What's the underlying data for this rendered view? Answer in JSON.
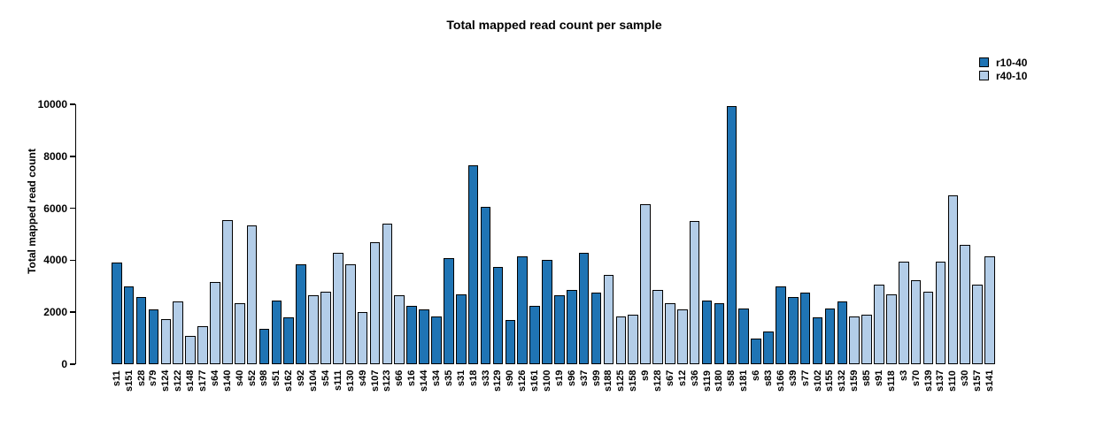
{
  "chart_data": {
    "type": "bar",
    "title": "Total mapped read count per sample",
    "xlabel": "",
    "ylabel": "Total mapped read count",
    "ylim": [
      0,
      10000
    ],
    "yticks": [
      0,
      2000,
      4000,
      6000,
      8000,
      10000
    ],
    "grid": false,
    "legend_position": "top-right",
    "bar_border_color": "#000000",
    "legend": [
      {
        "name": "r10-40",
        "color": "#1F74B4"
      },
      {
        "name": "r40-10",
        "color": "#B3CDE8"
      }
    ],
    "bars": [
      {
        "sample": "s11",
        "value": 3900,
        "group": "r10-40"
      },
      {
        "sample": "s151",
        "value": 3000,
        "group": "r10-40"
      },
      {
        "sample": "s28",
        "value": 2600,
        "group": "r10-40"
      },
      {
        "sample": "s79",
        "value": 2100,
        "group": "r10-40"
      },
      {
        "sample": "s124",
        "value": 1750,
        "group": "r40-10"
      },
      {
        "sample": "s122",
        "value": 2400,
        "group": "r40-10"
      },
      {
        "sample": "s148",
        "value": 1100,
        "group": "r40-10"
      },
      {
        "sample": "s177",
        "value": 1450,
        "group": "r40-10"
      },
      {
        "sample": "s64",
        "value": 3150,
        "group": "r40-10"
      },
      {
        "sample": "s140",
        "value": 5550,
        "group": "r40-10"
      },
      {
        "sample": "s40",
        "value": 2350,
        "group": "r40-10"
      },
      {
        "sample": "s52",
        "value": 5350,
        "group": "r40-10"
      },
      {
        "sample": "s98",
        "value": 1350,
        "group": "r10-40"
      },
      {
        "sample": "s51",
        "value": 2450,
        "group": "r10-40"
      },
      {
        "sample": "s162",
        "value": 1800,
        "group": "r10-40"
      },
      {
        "sample": "s92",
        "value": 3850,
        "group": "r10-40"
      },
      {
        "sample": "s104",
        "value": 2650,
        "group": "r40-10"
      },
      {
        "sample": "s54",
        "value": 2800,
        "group": "r40-10"
      },
      {
        "sample": "s111",
        "value": 4300,
        "group": "r40-10"
      },
      {
        "sample": "s130",
        "value": 3850,
        "group": "r40-10"
      },
      {
        "sample": "s49",
        "value": 2000,
        "group": "r40-10"
      },
      {
        "sample": "s107",
        "value": 4700,
        "group": "r40-10"
      },
      {
        "sample": "s123",
        "value": 5400,
        "group": "r40-10"
      },
      {
        "sample": "s66",
        "value": 2650,
        "group": "r40-10"
      },
      {
        "sample": "s16",
        "value": 2250,
        "group": "r10-40"
      },
      {
        "sample": "s144",
        "value": 2100,
        "group": "r10-40"
      },
      {
        "sample": "s34",
        "value": 1850,
        "group": "r10-40"
      },
      {
        "sample": "s35",
        "value": 4100,
        "group": "r10-40"
      },
      {
        "sample": "s31",
        "value": 2700,
        "group": "r10-40"
      },
      {
        "sample": "s18",
        "value": 7650,
        "group": "r10-40"
      },
      {
        "sample": "s33",
        "value": 6050,
        "group": "r10-40"
      },
      {
        "sample": "s129",
        "value": 3750,
        "group": "r10-40"
      },
      {
        "sample": "s90",
        "value": 1700,
        "group": "r10-40"
      },
      {
        "sample": "s126",
        "value": 4150,
        "group": "r10-40"
      },
      {
        "sample": "s161",
        "value": 2250,
        "group": "r10-40"
      },
      {
        "sample": "s100",
        "value": 4000,
        "group": "r10-40"
      },
      {
        "sample": "s19",
        "value": 2650,
        "group": "r10-40"
      },
      {
        "sample": "s96",
        "value": 2850,
        "group": "r10-40"
      },
      {
        "sample": "s37",
        "value": 4300,
        "group": "r10-40"
      },
      {
        "sample": "s99",
        "value": 2750,
        "group": "r10-40"
      },
      {
        "sample": "s188",
        "value": 3450,
        "group": "r40-10"
      },
      {
        "sample": "s125",
        "value": 1850,
        "group": "r40-10"
      },
      {
        "sample": "s158",
        "value": 1900,
        "group": "r40-10"
      },
      {
        "sample": "s9",
        "value": 6150,
        "group": "r40-10"
      },
      {
        "sample": "s128",
        "value": 2850,
        "group": "r40-10"
      },
      {
        "sample": "s67",
        "value": 2350,
        "group": "r40-10"
      },
      {
        "sample": "s12",
        "value": 2100,
        "group": "r40-10"
      },
      {
        "sample": "s36",
        "value": 5500,
        "group": "r40-10"
      },
      {
        "sample": "s119",
        "value": 2450,
        "group": "r10-40"
      },
      {
        "sample": "s180",
        "value": 2350,
        "group": "r10-40"
      },
      {
        "sample": "s58",
        "value": 9950,
        "group": "r10-40"
      },
      {
        "sample": "s181",
        "value": 2150,
        "group": "r10-40"
      },
      {
        "sample": "s6",
        "value": 1000,
        "group": "r10-40"
      },
      {
        "sample": "s83",
        "value": 1250,
        "group": "r10-40"
      },
      {
        "sample": "s166",
        "value": 3000,
        "group": "r10-40"
      },
      {
        "sample": "s39",
        "value": 2600,
        "group": "r10-40"
      },
      {
        "sample": "s77",
        "value": 2750,
        "group": "r10-40"
      },
      {
        "sample": "s102",
        "value": 1800,
        "group": "r10-40"
      },
      {
        "sample": "s155",
        "value": 2150,
        "group": "r10-40"
      },
      {
        "sample": "s132",
        "value": 2400,
        "group": "r10-40"
      },
      {
        "sample": "s159",
        "value": 1850,
        "group": "r40-10"
      },
      {
        "sample": "s85",
        "value": 1900,
        "group": "r40-10"
      },
      {
        "sample": "s91",
        "value": 3050,
        "group": "r40-10"
      },
      {
        "sample": "s118",
        "value": 2700,
        "group": "r40-10"
      },
      {
        "sample": "s3",
        "value": 3950,
        "group": "r40-10"
      },
      {
        "sample": "s70",
        "value": 3250,
        "group": "r40-10"
      },
      {
        "sample": "s139",
        "value": 2800,
        "group": "r40-10"
      },
      {
        "sample": "s137",
        "value": 3950,
        "group": "r40-10"
      },
      {
        "sample": "s110",
        "value": 6500,
        "group": "r40-10"
      },
      {
        "sample": "s30",
        "value": 4600,
        "group": "r40-10"
      },
      {
        "sample": "s157",
        "value": 3050,
        "group": "r40-10"
      },
      {
        "sample": "s141",
        "value": 4150,
        "group": "r40-10"
      }
    ]
  }
}
